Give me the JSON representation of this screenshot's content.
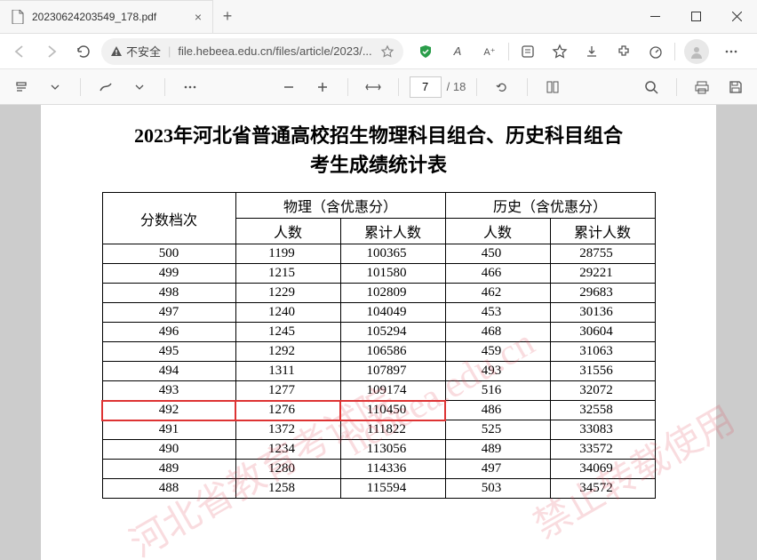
{
  "tab": {
    "title": "20230624203549_178.pdf"
  },
  "addressbar": {
    "security_label": "不安全",
    "url": "file.hebeea.edu.cn/files/article/2023/..."
  },
  "pdfviewer": {
    "current_page": "7",
    "total_pages": "/ 18"
  },
  "document": {
    "title_line1": "2023年河北省普通高校招生物理科目组合、历史科目组合",
    "title_line2": "考生成绩统计表",
    "headers": {
      "score": "分数档次",
      "physics": "物理（含优惠分）",
      "history": "历史（含优惠分）",
      "count": "人数",
      "cumulative": "累计人数"
    },
    "highlight_score": "492",
    "rows": [
      {
        "score": "500",
        "p_cnt": "1199",
        "p_cum": "100365",
        "h_cnt": "450",
        "h_cum": "28755"
      },
      {
        "score": "499",
        "p_cnt": "1215",
        "p_cum": "101580",
        "h_cnt": "466",
        "h_cum": "29221"
      },
      {
        "score": "498",
        "p_cnt": "1229",
        "p_cum": "102809",
        "h_cnt": "462",
        "h_cum": "29683"
      },
      {
        "score": "497",
        "p_cnt": "1240",
        "p_cum": "104049",
        "h_cnt": "453",
        "h_cum": "30136"
      },
      {
        "score": "496",
        "p_cnt": "1245",
        "p_cum": "105294",
        "h_cnt": "468",
        "h_cum": "30604"
      },
      {
        "score": "495",
        "p_cnt": "1292",
        "p_cum": "106586",
        "h_cnt": "459",
        "h_cum": "31063"
      },
      {
        "score": "494",
        "p_cnt": "1311",
        "p_cum": "107897",
        "h_cnt": "493",
        "h_cum": "31556"
      },
      {
        "score": "493",
        "p_cnt": "1277",
        "p_cum": "109174",
        "h_cnt": "516",
        "h_cum": "32072"
      },
      {
        "score": "492",
        "p_cnt": "1276",
        "p_cum": "110450",
        "h_cnt": "486",
        "h_cum": "32558"
      },
      {
        "score": "491",
        "p_cnt": "1372",
        "p_cum": "111822",
        "h_cnt": "525",
        "h_cum": "33083"
      },
      {
        "score": "490",
        "p_cnt": "1234",
        "p_cum": "113056",
        "h_cnt": "489",
        "h_cum": "33572"
      },
      {
        "score": "489",
        "p_cnt": "1280",
        "p_cum": "114336",
        "h_cnt": "497",
        "h_cum": "34069"
      },
      {
        "score": "488",
        "p_cnt": "1258",
        "p_cum": "115594",
        "h_cnt": "503",
        "h_cum": "34572"
      }
    ],
    "watermarks": [
      "河北省教育考试院",
      "hebeea.edu.cn",
      "禁止转载使用"
    ]
  }
}
